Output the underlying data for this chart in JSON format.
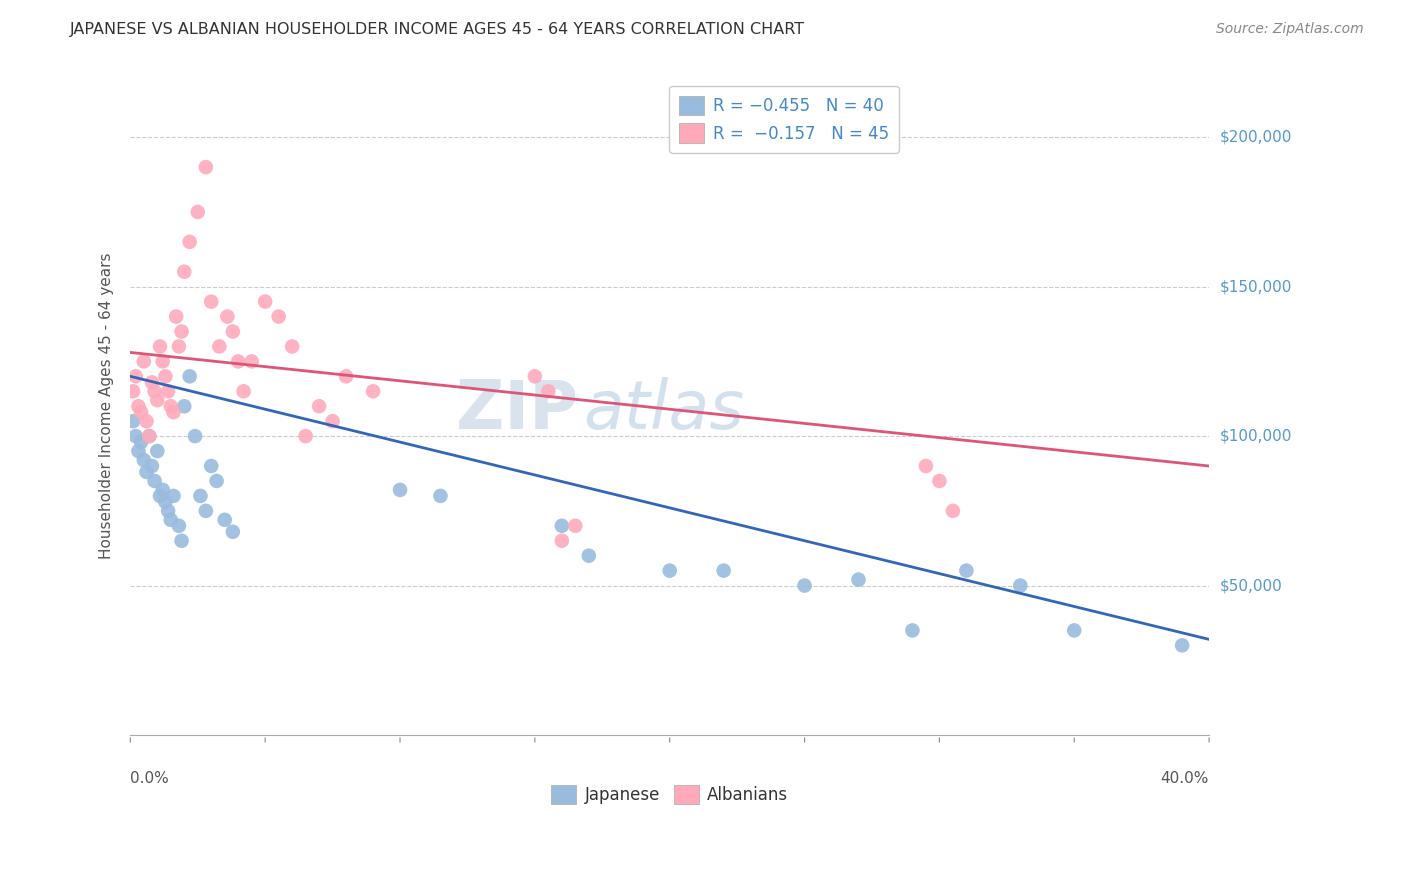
{
  "title": "JAPANESE VS ALBANIAN HOUSEHOLDER INCOME AGES 45 - 64 YEARS CORRELATION CHART",
  "source": "Source: ZipAtlas.com",
  "ylabel": "Householder Income Ages 45 - 64 years",
  "yticks": [
    50000,
    100000,
    150000,
    200000
  ],
  "ytick_labels": [
    "$50,000",
    "$100,000",
    "$150,000",
    "$200,000"
  ],
  "xlim": [
    0.0,
    0.4
  ],
  "ylim": [
    0,
    220000
  ],
  "japanese_color": "#99bbdd",
  "albanian_color": "#ffaabb",
  "japanese_line_color": "#3366bb",
  "albanian_line_color": "#dd5577",
  "background_color": "#ffffff",
  "grid_color": "#cccccc",
  "watermark_zip": "ZIP",
  "watermark_atlas": "atlas",
  "japanese_x": [
    0.001,
    0.002,
    0.003,
    0.004,
    0.005,
    0.006,
    0.007,
    0.008,
    0.009,
    0.01,
    0.011,
    0.012,
    0.013,
    0.014,
    0.015,
    0.016,
    0.018,
    0.019,
    0.02,
    0.022,
    0.024,
    0.026,
    0.028,
    0.03,
    0.032,
    0.035,
    0.038,
    0.1,
    0.115,
    0.16,
    0.17,
    0.2,
    0.22,
    0.25,
    0.27,
    0.29,
    0.31,
    0.33,
    0.35,
    0.39
  ],
  "japanese_y": [
    105000,
    100000,
    95000,
    98000,
    92000,
    88000,
    100000,
    90000,
    85000,
    95000,
    80000,
    82000,
    78000,
    75000,
    72000,
    80000,
    70000,
    65000,
    110000,
    120000,
    100000,
    80000,
    75000,
    90000,
    85000,
    72000,
    68000,
    82000,
    80000,
    70000,
    60000,
    55000,
    55000,
    50000,
    52000,
    35000,
    55000,
    50000,
    35000,
    30000
  ],
  "albanian_x": [
    0.001,
    0.002,
    0.003,
    0.004,
    0.005,
    0.006,
    0.007,
    0.008,
    0.009,
    0.01,
    0.011,
    0.012,
    0.013,
    0.014,
    0.015,
    0.016,
    0.017,
    0.018,
    0.019,
    0.02,
    0.022,
    0.025,
    0.028,
    0.03,
    0.033,
    0.036,
    0.038,
    0.04,
    0.042,
    0.045,
    0.05,
    0.055,
    0.06,
    0.065,
    0.07,
    0.075,
    0.08,
    0.09,
    0.15,
    0.155,
    0.16,
    0.165,
    0.295,
    0.3,
    0.305
  ],
  "albanian_y": [
    115000,
    120000,
    110000,
    108000,
    125000,
    105000,
    100000,
    118000,
    115000,
    112000,
    130000,
    125000,
    120000,
    115000,
    110000,
    108000,
    140000,
    130000,
    135000,
    155000,
    165000,
    175000,
    190000,
    145000,
    130000,
    140000,
    135000,
    125000,
    115000,
    125000,
    145000,
    140000,
    130000,
    100000,
    110000,
    105000,
    120000,
    115000,
    120000,
    115000,
    65000,
    70000,
    90000,
    85000,
    75000
  ]
}
